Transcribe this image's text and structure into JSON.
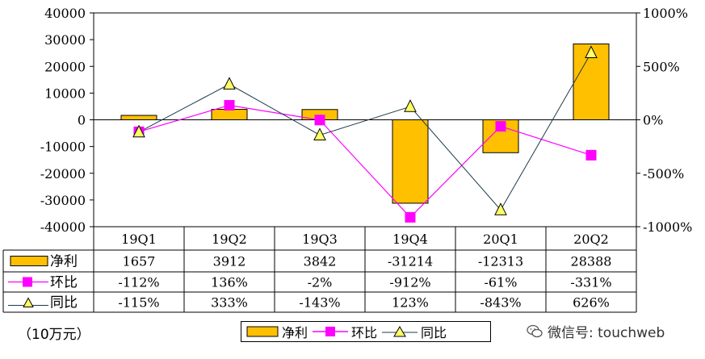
{
  "chart_data": {
    "type": "bar",
    "categories": [
      "19Q1",
      "19Q2",
      "19Q3",
      "19Q4",
      "20Q1",
      "20Q2"
    ],
    "series": [
      {
        "name": "净利",
        "type": "bar",
        "axis": "left",
        "values": [
          1657,
          3912,
          3842,
          -31214,
          -12313,
          28388
        ],
        "labels": [
          "1657",
          "3912",
          "3842",
          "-31214",
          "-12313",
          "28388"
        ]
      },
      {
        "name": "环比",
        "type": "line",
        "axis": "right",
        "marker": "square",
        "values": [
          -112,
          136,
          -2,
          -912,
          -61,
          -331
        ],
        "labels": [
          "-112%",
          "136%",
          "-2%",
          "-912%",
          "-61%",
          "-331%"
        ]
      },
      {
        "name": "同比",
        "type": "line",
        "axis": "right",
        "marker": "triangle",
        "values": [
          -115,
          333,
          -143,
          123,
          -843,
          626
        ],
        "labels": [
          "-115%",
          "333%",
          "-143%",
          "123%",
          "-843%",
          "626%"
        ]
      }
    ],
    "yticks_left": [
      "40000",
      "30000",
      "20000",
      "10000",
      "0",
      "-10000",
      "-20000",
      "-30000",
      "-40000"
    ],
    "yticks_right": [
      "1000%",
      "500%",
      "0%",
      "-500%",
      "-1000%"
    ],
    "ylim_left": [
      -40000,
      40000
    ],
    "ylim_right": [
      -1000,
      1000
    ],
    "unit_label": "（10万元）",
    "colors": {
      "bar": "#ffc000",
      "qoq": "#ff00ff",
      "yoy_line": "#1f3a4c",
      "yoy_marker": "#ffff66"
    }
  },
  "watermark": "微信号: touchweb"
}
